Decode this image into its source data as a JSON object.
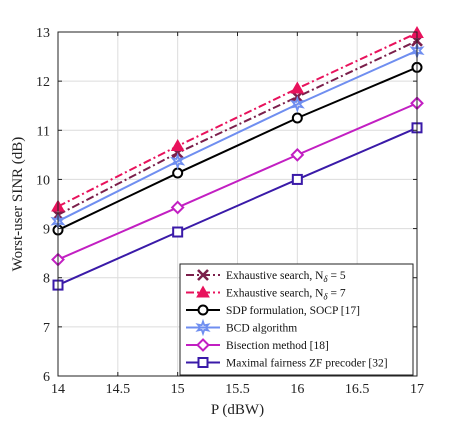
{
  "chart_data": {
    "type": "line",
    "xlabel": "P (dBW)",
    "ylabel": "Worst-user SINR (dB)",
    "x": [
      14,
      15,
      16,
      17
    ],
    "xlim": [
      14,
      17
    ],
    "ylim": [
      6,
      13
    ],
    "xticks": [
      14,
      14.5,
      15,
      15.5,
      16,
      16.5,
      17
    ],
    "xtick_labels": [
      "14",
      "14.5",
      "15",
      "15.5",
      "16",
      "16.5",
      "17"
    ],
    "yticks": [
      6,
      7,
      8,
      9,
      10,
      11,
      12,
      13
    ],
    "ytick_labels": [
      "6",
      "7",
      "8",
      "9",
      "10",
      "11",
      "12",
      "13"
    ],
    "grid": true,
    "legend_position": "bottom-right",
    "series": [
      {
        "name": "Exhaustive search, N_δ = 5",
        "legend_main": "Exhaustive search, N",
        "legend_sub": "δ",
        "legend_tail": " = 5",
        "values": [
          9.28,
          10.54,
          11.68,
          12.82
        ],
        "color": "#7b1f4b",
        "dash": "8,3,2,3",
        "marker": "x"
      },
      {
        "name": "Exhaustive search, N_δ = 7",
        "legend_main": "Exhaustive search, N",
        "legend_sub": "δ",
        "legend_tail": " = 7",
        "values": [
          9.45,
          10.68,
          11.85,
          12.98
        ],
        "color": "#e8125c",
        "dash": "8,3,2,3",
        "marker": "triangle"
      },
      {
        "name": "SDP formulation, SOCP [17]",
        "legend_main": "SDP formulation, SOCP [17]",
        "legend_sub": "",
        "legend_tail": "",
        "values": [
          8.97,
          10.13,
          11.25,
          12.28
        ],
        "color": "#000000",
        "dash": "",
        "marker": "circle"
      },
      {
        "name": "BCD algorithm",
        "legend_main": "BCD algorithm",
        "legend_sub": "",
        "legend_tail": "",
        "values": [
          9.15,
          10.37,
          11.53,
          12.62
        ],
        "color": "#6f8ef0",
        "dash": "",
        "marker": "star"
      },
      {
        "name": "Bisection method [18]",
        "legend_main": "Bisection method [18]",
        "legend_sub": "",
        "legend_tail": "",
        "values": [
          8.37,
          9.43,
          10.5,
          11.55
        ],
        "color": "#c21fc2",
        "dash": "",
        "marker": "diamond"
      },
      {
        "name": "Maximal fairness ZF precoder [32]",
        "legend_main": "Maximal fairness ZF precoder [32]",
        "legend_sub": "",
        "legend_tail": "",
        "values": [
          7.85,
          8.93,
          10.0,
          11.05
        ],
        "color": "#3a1aa8",
        "dash": "",
        "marker": "square"
      }
    ]
  }
}
